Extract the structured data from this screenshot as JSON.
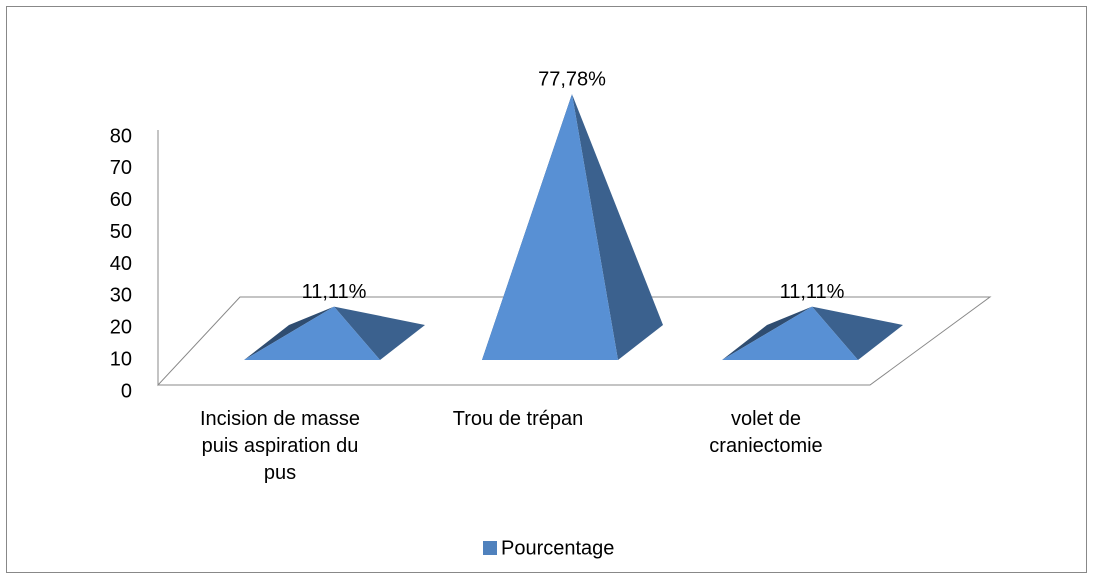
{
  "chart_data": {
    "type": "pyramid",
    "categories": [
      "Incision de masse puis aspiration du pus",
      "Trou de trépan",
      "volet de craniectomie"
    ],
    "series": [
      {
        "name": "Pourcentage",
        "color": "#4f81bd",
        "values": [
          11.11,
          77.78,
          11.11
        ],
        "value_labels": [
          "11,11%",
          "77,78%",
          "11,11%"
        ]
      }
    ],
    "ylim": [
      0,
      80
    ],
    "yticks": [
      0,
      10,
      20,
      30,
      40,
      50,
      60,
      70,
      80
    ],
    "legend": "bottom"
  }
}
